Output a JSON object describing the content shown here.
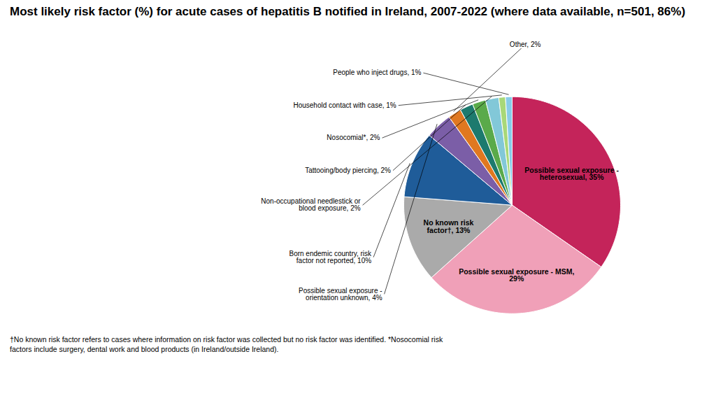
{
  "chart_data": {
    "type": "pie",
    "title": "Most likely risk factor (%) for acute cases of hepatitis B notified in Ireland, 2007-2022 (where data available, n=501, 86%)",
    "categories": [
      "Possible sexual exposure -\nheterosexual, 35%",
      "Possible sexual exposure - MSM,\n29%",
      "No known risk\nfactor†, 13%",
      "Born endemic country, risk\nfactor not reported, 10%",
      "Possible sexual exposure -\norientation unknown, 4%",
      "Other, 2%",
      "Tattooing/body piercing, 2%",
      "Nosocomial*, 2%",
      "Non-occupational needlestick or\nblood exposure, 2%",
      "Household contact with case, 1%",
      "People who inject drugs, 1%"
    ],
    "values": [
      35,
      29,
      13,
      10,
      4,
      2,
      2,
      2,
      2,
      1,
      1
    ],
    "colors": [
      "#c4245a",
      "#f0a0b8",
      "#aaaaaa",
      "#1f5c99",
      "#7B5EA7",
      "#e07820",
      "#1d7a6e",
      "#5aaa4a",
      "#82c8d8",
      "#a8d878",
      "#88cce8"
    ],
    "data_labels": true,
    "footnote": "†No known risk factor refers to cases where information on risk factor was collected but no risk factor was identified. *Nosocomial risk\nfactors include surgery, dental work and blood products (in Ireland/outside Ireland)."
  }
}
